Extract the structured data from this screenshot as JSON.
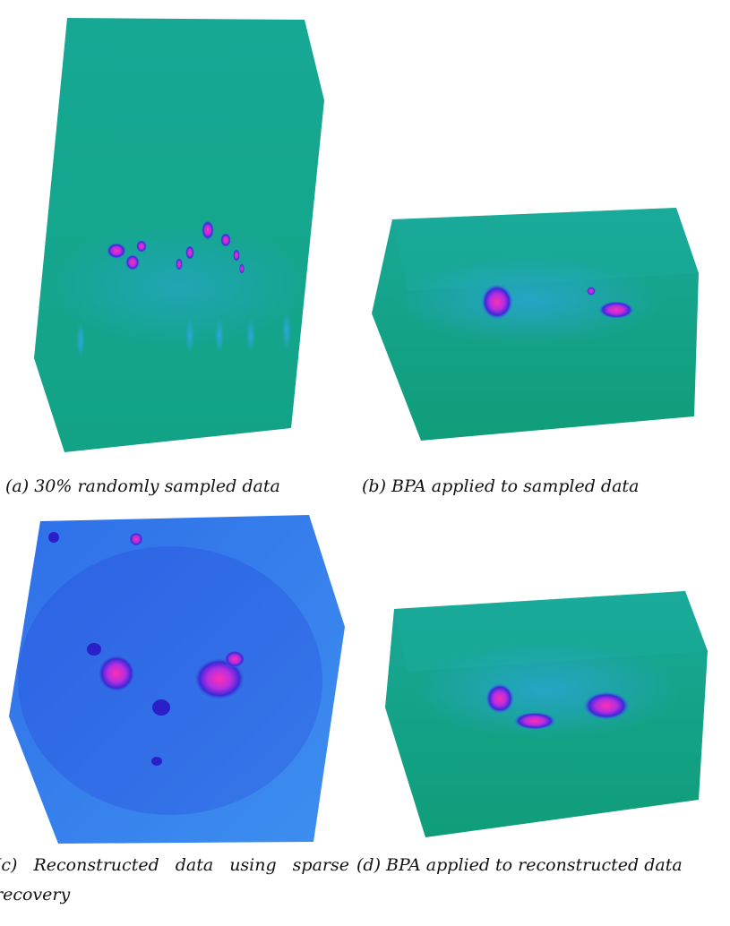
{
  "figure": {
    "panels": [
      {
        "caption": "(a) 30% randomly sampled data"
      },
      {
        "caption": "(b) BPA applied to sampled data"
      },
      {
        "caption": "(c) Reconstructed data using sparse recovery"
      },
      {
        "caption": "(d) BPA applied to reconstructed data"
      }
    ]
  }
}
